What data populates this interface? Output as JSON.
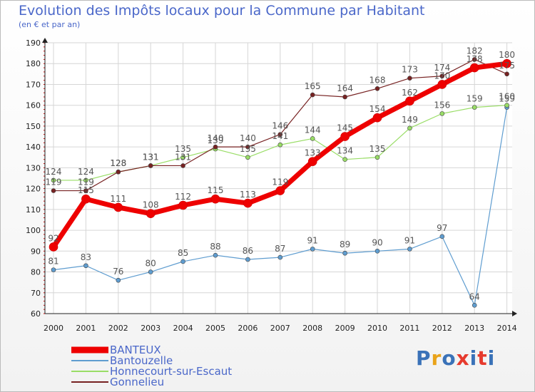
{
  "title": "Evolution des Impôts locaux pour la Commune par Habitant",
  "subtitle": "(en € et par an)",
  "logo": {
    "text": "Proxiti",
    "colors": [
      "#3a72b8",
      "#e9a31a",
      "#3a72b8",
      "#e63a2d",
      "#3a72b8",
      "#e63a2d",
      "#3a72b8"
    ]
  },
  "chart_data": {
    "type": "line",
    "title": "Evolution des Impôts locaux pour la Commune par Habitant",
    "subtitle": "(en € et par an)",
    "xlabel": "",
    "ylabel": "",
    "x": [
      "2000",
      "2001",
      "2002",
      "2003",
      "2004",
      "2005",
      "2006",
      "2007",
      "2008",
      "2009",
      "2010",
      "2011",
      "2012",
      "2013",
      "2014"
    ],
    "ylim": [
      60,
      190
    ],
    "yticks": [
      60,
      70,
      80,
      90,
      100,
      110,
      120,
      130,
      140,
      150,
      160,
      170,
      180,
      190
    ],
    "grid": true,
    "legend_position": "bottom-left",
    "series": [
      {
        "name": "BANTEUX",
        "color": "#ee0000",
        "values": [
          92,
          115,
          111,
          108,
          112,
          115,
          113,
          119,
          133,
          145,
          154,
          162,
          170,
          178,
          180
        ]
      },
      {
        "name": "Bantouzelle",
        "color": "#5f9dd0",
        "values": [
          81,
          83,
          76,
          80,
          85,
          88,
          86,
          87,
          91,
          89,
          90,
          91,
          97,
          64,
          159
        ]
      },
      {
        "name": "Honnecourt-sur-Escaut",
        "color": "#99dd66",
        "values": [
          124,
          124,
          128,
          131,
          135,
          139,
          135,
          141,
          144,
          134,
          135,
          149,
          156,
          159,
          160
        ]
      },
      {
        "name": "Gonnelieu",
        "color": "#772222",
        "values": [
          119,
          119,
          128,
          131,
          131,
          140,
          140,
          146,
          165,
          164,
          168,
          173,
          174,
          182,
          175
        ]
      }
    ]
  }
}
